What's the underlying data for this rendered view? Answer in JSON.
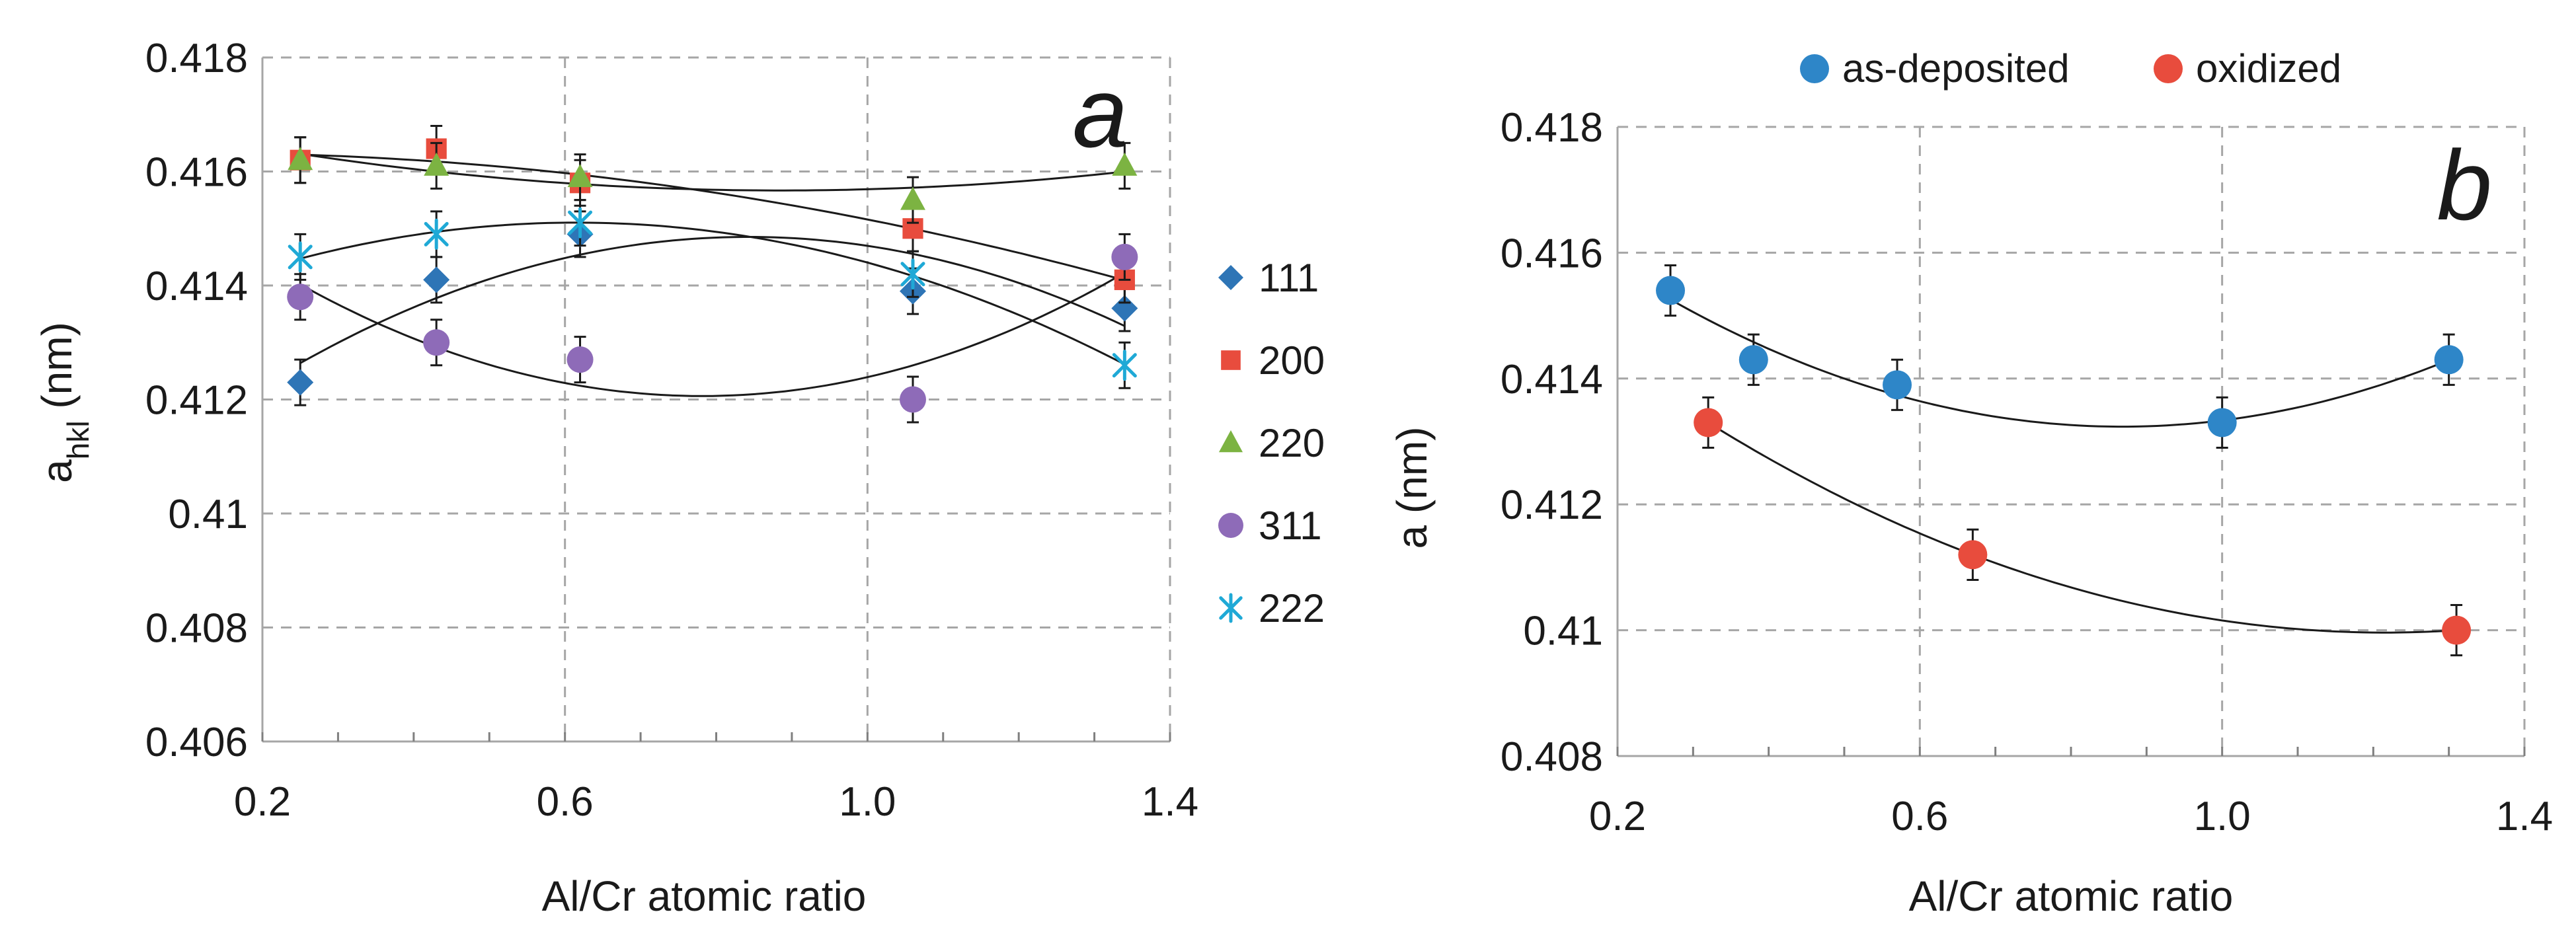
{
  "chart_data": [
    {
      "panel": "a",
      "type": "scatter",
      "title": "",
      "xlabel": "Al/Cr atomic ratio",
      "ylabel": "a",
      "ylabel_sub": "hkl",
      "ylabel_unit": " (nm)",
      "xlim": [
        0.2,
        1.4
      ],
      "ylim": [
        0.406,
        0.418
      ],
      "x_ticks": [
        0.2,
        0.6,
        1.0,
        1.4
      ],
      "x_tick_labels": [
        "0.2",
        "0.6",
        "1.0",
        "1.4"
      ],
      "y_ticks": [
        0.406,
        0.408,
        0.41,
        0.412,
        0.414,
        0.416,
        0.418
      ],
      "y_tick_labels": [
        "0.406",
        "0.408",
        "0.41",
        "0.412",
        "0.414",
        "0.416",
        "0.418"
      ],
      "grid": true,
      "legend_position": "right",
      "series": [
        {
          "name": "111",
          "marker": "diamond",
          "color": "#2e75b6",
          "x": [
            0.25,
            0.43,
            0.62,
            1.06,
            1.34
          ],
          "y": [
            0.4123,
            0.4141,
            0.4149,
            0.4139,
            0.4136
          ],
          "error": 0.0004,
          "trend": "polynomial"
        },
        {
          "name": "200",
          "marker": "square",
          "color": "#e84c3d",
          "x": [
            0.25,
            0.43,
            0.62,
            1.06,
            1.34
          ],
          "y": [
            0.4162,
            0.4164,
            0.4158,
            0.415,
            0.4141
          ],
          "error": 0.0004,
          "trend": "polynomial"
        },
        {
          "name": "220",
          "marker": "triangle",
          "color": "#7cb342",
          "x": [
            0.25,
            0.43,
            0.62,
            1.06,
            1.34
          ],
          "y": [
            0.4162,
            0.4161,
            0.4159,
            0.4155,
            0.4161
          ],
          "error": 0.0004,
          "trend": "polynomial"
        },
        {
          "name": "311",
          "marker": "circle",
          "color": "#8e6bb8",
          "x": [
            0.25,
            0.43,
            0.62,
            1.06,
            1.34
          ],
          "y": [
            0.4138,
            0.413,
            0.4127,
            0.412,
            0.4145
          ],
          "error": 0.0004,
          "trend": "polynomial"
        },
        {
          "name": "222",
          "marker": "asterisk",
          "color": "#1fa9d6",
          "x": [
            0.25,
            0.43,
            0.62,
            1.06,
            1.34
          ],
          "y": [
            0.4145,
            0.4149,
            0.4151,
            0.4142,
            0.4126
          ],
          "error": 0.0004,
          "trend": "polynomial"
        }
      ]
    },
    {
      "panel": "b",
      "type": "scatter",
      "title": "",
      "xlabel": "Al/Cr atomic ratio",
      "ylabel": "a (nm)",
      "xlim": [
        0.2,
        1.4
      ],
      "ylim": [
        0.408,
        0.418
      ],
      "x_ticks": [
        0.2,
        0.6,
        1.0,
        1.4
      ],
      "x_tick_labels": [
        "0.2",
        "0.6",
        "1.0",
        "1.4"
      ],
      "y_ticks": [
        0.408,
        0.41,
        0.412,
        0.414,
        0.416,
        0.418
      ],
      "y_tick_labels": [
        "0.408",
        "0.41",
        "0.412",
        "0.414",
        "0.416",
        "0.418"
      ],
      "grid": true,
      "legend_position": "top",
      "series": [
        {
          "name": "as-deposited",
          "marker": "circle",
          "color": "#2e86c8",
          "x": [
            0.27,
            0.38,
            0.57,
            1.0,
            1.3
          ],
          "y": [
            0.4154,
            0.4143,
            0.4139,
            0.4133,
            0.4143
          ],
          "error": 0.0004,
          "trend": "polynomial"
        },
        {
          "name": "oxidized",
          "marker": "circle",
          "color": "#e84c3d",
          "x": [
            0.32,
            0.67,
            1.31
          ],
          "y": [
            0.4133,
            0.4112,
            0.41
          ],
          "error": 0.0004,
          "trend": "polynomial"
        }
      ]
    }
  ]
}
